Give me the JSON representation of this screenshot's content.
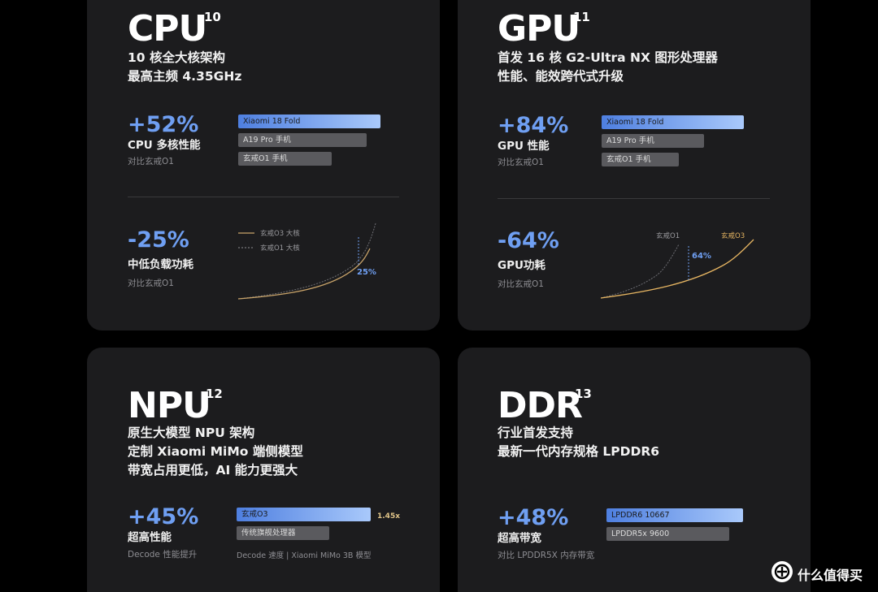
{
  "cpu": {
    "title": "CPU",
    "sup": "10",
    "line1": "10 核全大核架构",
    "line2": "最高主频 4.35GHz",
    "metric1": {
      "value": "+52%",
      "label": "CPU 多核性能",
      "compare": "对比玄戒O1"
    },
    "metric2": {
      "value": "-25%",
      "label": "中低负载功耗",
      "compare": "对比玄戒O1"
    }
  },
  "gpu": {
    "title": "GPU",
    "sup": "11",
    "line1": "首发 16 核 G2-Ultra NX 图形处理器",
    "line2": "性能、能效跨代式升级",
    "metric1": {
      "value": "+84%",
      "label": "GPU 性能",
      "compare": "对比玄戒O1"
    },
    "metric2": {
      "value": "-64%",
      "label": "GPU功耗",
      "compare": "对比玄戒O1"
    }
  },
  "npu": {
    "title": "NPU",
    "sup": "12",
    "line1": "原生大模型 NPU 架构",
    "line2": "定制 Xiaomi MiMo 端侧模型",
    "line3": "带宽占用更低，AI 能力更强大",
    "metric1": {
      "value": "+45%",
      "label": "超高性能",
      "compare": "Decode 性能提升"
    }
  },
  "ddr": {
    "title": "DDR",
    "sup": "13",
    "line1": "行业首发支持",
    "line2": "最新一代内存规格 LPDDR6",
    "metric1": {
      "value": "+48%",
      "label": "超高带宽",
      "compare": "对比 LPDDR5X 内存带宽"
    }
  },
  "watermark": {
    "text": "什么值得买"
  },
  "chart_data": [
    {
      "type": "bar",
      "id": "cpu-bars",
      "categories": [
        "Xiaomi 18 Fold",
        "A19 Pro 手机",
        "玄戒O1 手机"
      ],
      "values": [
        1.52,
        1.37,
        1.0
      ],
      "highlight": 0
    },
    {
      "type": "line",
      "id": "cpu-power",
      "series": [
        {
          "name": "玄戒O3 大核",
          "style": "solid",
          "color": "#c9a46a"
        },
        {
          "name": "玄戒O1 大核",
          "style": "dashed",
          "color": "#8e8e93"
        }
      ],
      "annotation": "25%"
    },
    {
      "type": "bar",
      "id": "gpu-bars",
      "categories": [
        "Xiaomi 18 Fold",
        "A19 Pro 手机",
        "玄戒O1 手机"
      ],
      "values": [
        1.84,
        1.32,
        1.0
      ],
      "highlight": 0
    },
    {
      "type": "line",
      "id": "gpu-power",
      "series": [
        {
          "name": "玄戒O1",
          "style": "dashed",
          "color": "#8e8e93"
        },
        {
          "name": "玄戒O3",
          "style": "solid",
          "color": "#e6b562"
        }
      ],
      "annotation": "64%"
    },
    {
      "type": "bar",
      "id": "npu-bars",
      "categories": [
        "玄戒O3",
        "传统旗舰处理器"
      ],
      "values": [
        1.45,
        1.0
      ],
      "highlight": 0,
      "value_label": "1.45x",
      "xlabel": "Decode 速度 | Xiaomi MiMo 3B 模型"
    },
    {
      "type": "bar",
      "id": "ddr-bars",
      "categories": [
        "LPDDR6 10667",
        "LPDDR5x 9600"
      ],
      "values": [
        10667,
        9600
      ],
      "highlight": 0
    }
  ]
}
